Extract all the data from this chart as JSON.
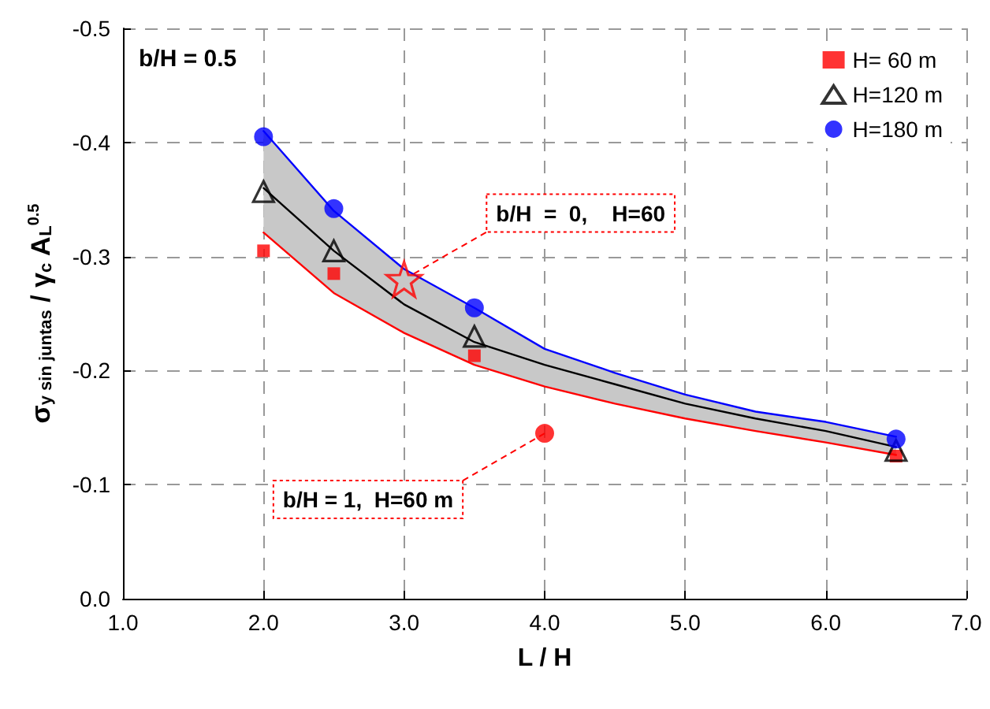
{
  "chart_data": {
    "type": "scatter",
    "xlabel": "L / H",
    "ylabel": "σ$_{y sin juntas}$ / γ$_{c}$ A$_{L}$$^{0.5}$",
    "xlim": [
      1.0,
      7.0
    ],
    "xticks": [
      {
        "value": 1,
        "label": "1.0"
      },
      {
        "value": 2,
        "label": "2.0"
      },
      {
        "value": 3,
        "label": "3.0"
      },
      {
        "value": 4,
        "label": "4.0"
      },
      {
        "value": 5,
        "label": "5.0"
      },
      {
        "value": 6,
        "label": "6.0"
      },
      {
        "value": 7,
        "label": "7.0"
      }
    ],
    "ylim": [
      0.0,
      -0.5
    ],
    "yticks": [
      {
        "value": 0,
        "label": "0.0"
      },
      {
        "value": -0.1,
        "label": "-0.1"
      },
      {
        "value": -0.2,
        "label": "-0.2"
      },
      {
        "value": -0.3,
        "label": "-0.3"
      },
      {
        "value": -0.4,
        "label": "-0.4"
      },
      {
        "value": -0.5,
        "label": "-0.5"
      }
    ],
    "grid": true,
    "legend": "top right",
    "series": [
      {
        "type": "line",
        "color": "#0000ff",
        "marker": "none",
        "x": [
          2,
          2.5,
          3,
          3.5,
          4,
          4.5,
          5,
          5.5,
          6,
          6.5
        ],
        "values": [
          -0.41,
          -0.34,
          -0.289,
          -0.255,
          -0.219,
          -0.198,
          -0.179,
          -0.164,
          -0.155,
          -0.142
        ]
      },
      {
        "type": "line",
        "color": "#ff0000",
        "marker": "none",
        "x": [
          2,
          2.5,
          3,
          3.5,
          4,
          4.5,
          5,
          5.5,
          6,
          6.5
        ],
        "values": [
          -0.321,
          -0.268,
          -0.233,
          -0.205,
          -0.186,
          -0.171,
          -0.158,
          -0.147,
          -0.137,
          -0.126
        ]
      },
      {
        "type": "line",
        "color": "#000000",
        "marker": "none",
        "x": [
          2,
          2.5,
          3,
          3.5,
          4,
          4.5,
          5,
          5.5,
          6,
          6.5
        ],
        "values": [
          -0.36,
          -0.305,
          -0.258,
          -0.225,
          -0.205,
          -0.188,
          -0.171,
          -0.158,
          -0.147,
          -0.133
        ],
        "lower": [
          -0.321,
          -0.268,
          -0.233,
          -0.205,
          -0.186,
          -0.171,
          -0.158,
          -0.147,
          -0.137,
          -0.126
        ],
        "upper": [
          -0.41,
          -0.34,
          -0.289,
          -0.255,
          -0.219,
          -0.198,
          -0.179,
          -0.164,
          -0.155,
          -0.142
        ]
      },
      {
        "name": "H= 60 m",
        "color": "#ff0000",
        "marker": "square",
        "x": [
          2,
          2.5,
          3.5,
          6.5
        ],
        "values": [
          -0.305,
          -0.285,
          -0.213,
          -0.125
        ]
      },
      {
        "name": "H=120 m",
        "color": "#000000",
        "marker": "triangle",
        "x": [
          2,
          2.5,
          3.5,
          6.5
        ],
        "values": [
          -0.357,
          -0.305,
          -0.23,
          -0.13
        ]
      },
      {
        "name": "H=180 m",
        "color": "#0000ff",
        "marker": "circle",
        "x": [
          2,
          2.5,
          3.5,
          6.5
        ],
        "values": [
          -0.405,
          -0.342,
          -0.255,
          -0.14
        ]
      },
      {
        "color": "#ff0000",
        "marker": "star",
        "x": [
          3
        ],
        "values": [
          -0.28
        ]
      },
      {
        "color": "#ff0000",
        "marker": "circle",
        "x": [
          4
        ],
        "values": [
          -0.145
        ]
      }
    ],
    "annotations": [
      "b/H = 0.5",
      {
        "text": "b/H  =  0,    H=60",
        "x": 3,
        "y": -0.28
      },
      {
        "text": "b/H = 1,  H=60 m",
        "x": 4,
        "y": -0.145
      }
    ]
  }
}
